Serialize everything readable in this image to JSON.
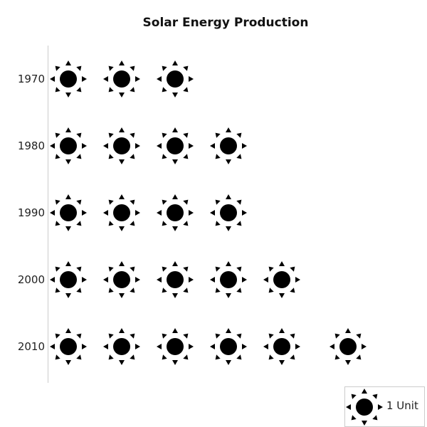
{
  "chart_data": {
    "type": "pictograph",
    "title": "Solar Energy Production",
    "icon": "sun-icon",
    "icon_color": "#000000",
    "categories": [
      "1970",
      "1980",
      "1990",
      "2000",
      "2010"
    ],
    "values": [
      3,
      4,
      4,
      5,
      6
    ],
    "unit_label": "1 Unit",
    "legend_position": "bottom-right",
    "axis_line_color": "#cccccc",
    "legend_border_color": "#cccccc"
  }
}
